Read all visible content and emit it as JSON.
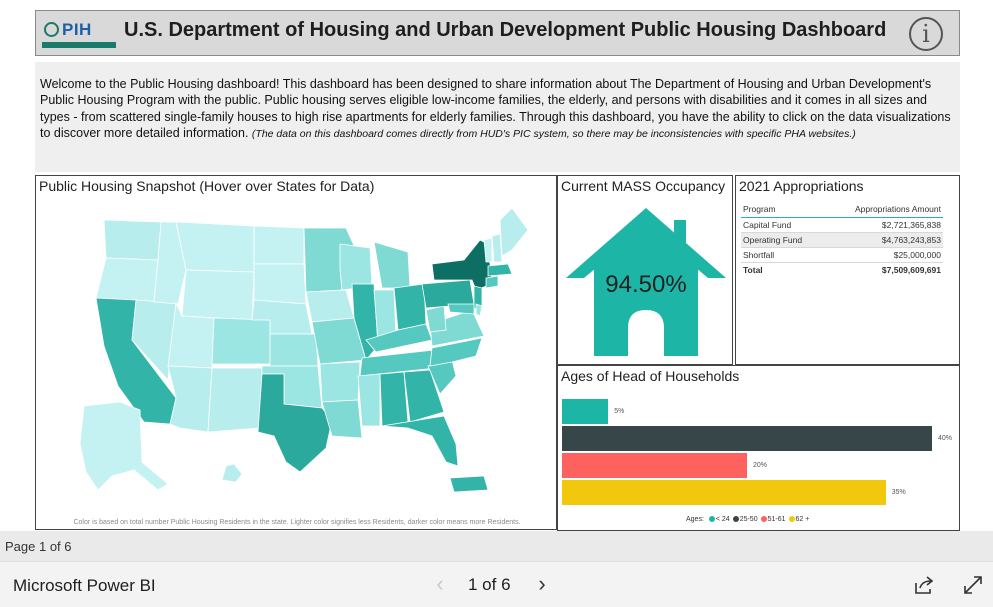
{
  "header": {
    "logo_text": "PIH",
    "title": "U.S. Department of Housing and Urban Development Public Housing Dashboard",
    "info_glyph": "i"
  },
  "intro": {
    "text": "Welcome to the Public Housing dashboard! This dashboard has been designed to share information about The Department of Housing and Urban Development's Public Housing Program with the public. Public housing serves eligible low-income families, the elderly, and persons with disabilities and it comes in all sizes and types - from scattered single-family houses to high rise apartments for elderly families. Through this dashboard, you have the ability to click on the data visualizations to discover more detailed information.",
    "note": "(The data on this dashboard comes directly from HUD's PIC system, so there may be inconsistencies with specific PHA websites.)"
  },
  "map": {
    "title": "Public Housing Snapshot (Hover over States for Data)",
    "note": "Color is based on total number Public Housing Residents in the state. Lighter color signifies less Residents, darker color means more Residents."
  },
  "occupancy": {
    "title": "Current MASS Occupancy",
    "value": "94.50%",
    "color": "#1db5a5"
  },
  "appropriations": {
    "title": "2021 Appropriations",
    "col_program": "Program",
    "col_amount": "Appropriations Amount",
    "rows": [
      {
        "program": "Capital Fund",
        "amount": "$2,721,365,838"
      },
      {
        "program": "Operating Fund",
        "amount": "$4,763,243,853"
      },
      {
        "program": "Shortfall",
        "amount": "$25,000,000"
      }
    ],
    "total_label": "Total",
    "total_amount": "$7,509,609,691"
  },
  "chart_data": {
    "type": "bar",
    "title": "Ages of Head of Households",
    "categories": [
      "< 24",
      "25-50",
      "51-61",
      "62 +"
    ],
    "values": [
      5,
      40,
      20,
      35
    ],
    "labels": [
      "5%",
      "40%",
      "20%",
      "35%"
    ],
    "colors": [
      "#1db5a5",
      "#374649",
      "#fd625e",
      "#f2c80f"
    ],
    "legend_title": "Ages:",
    "xlim": [
      0,
      40
    ]
  },
  "status": {
    "page_label": "Page 1 of 6"
  },
  "footer": {
    "brand": "Microsoft Power BI",
    "page_nav": "1 of 6",
    "prev_glyph": "‹",
    "next_glyph": "›"
  }
}
